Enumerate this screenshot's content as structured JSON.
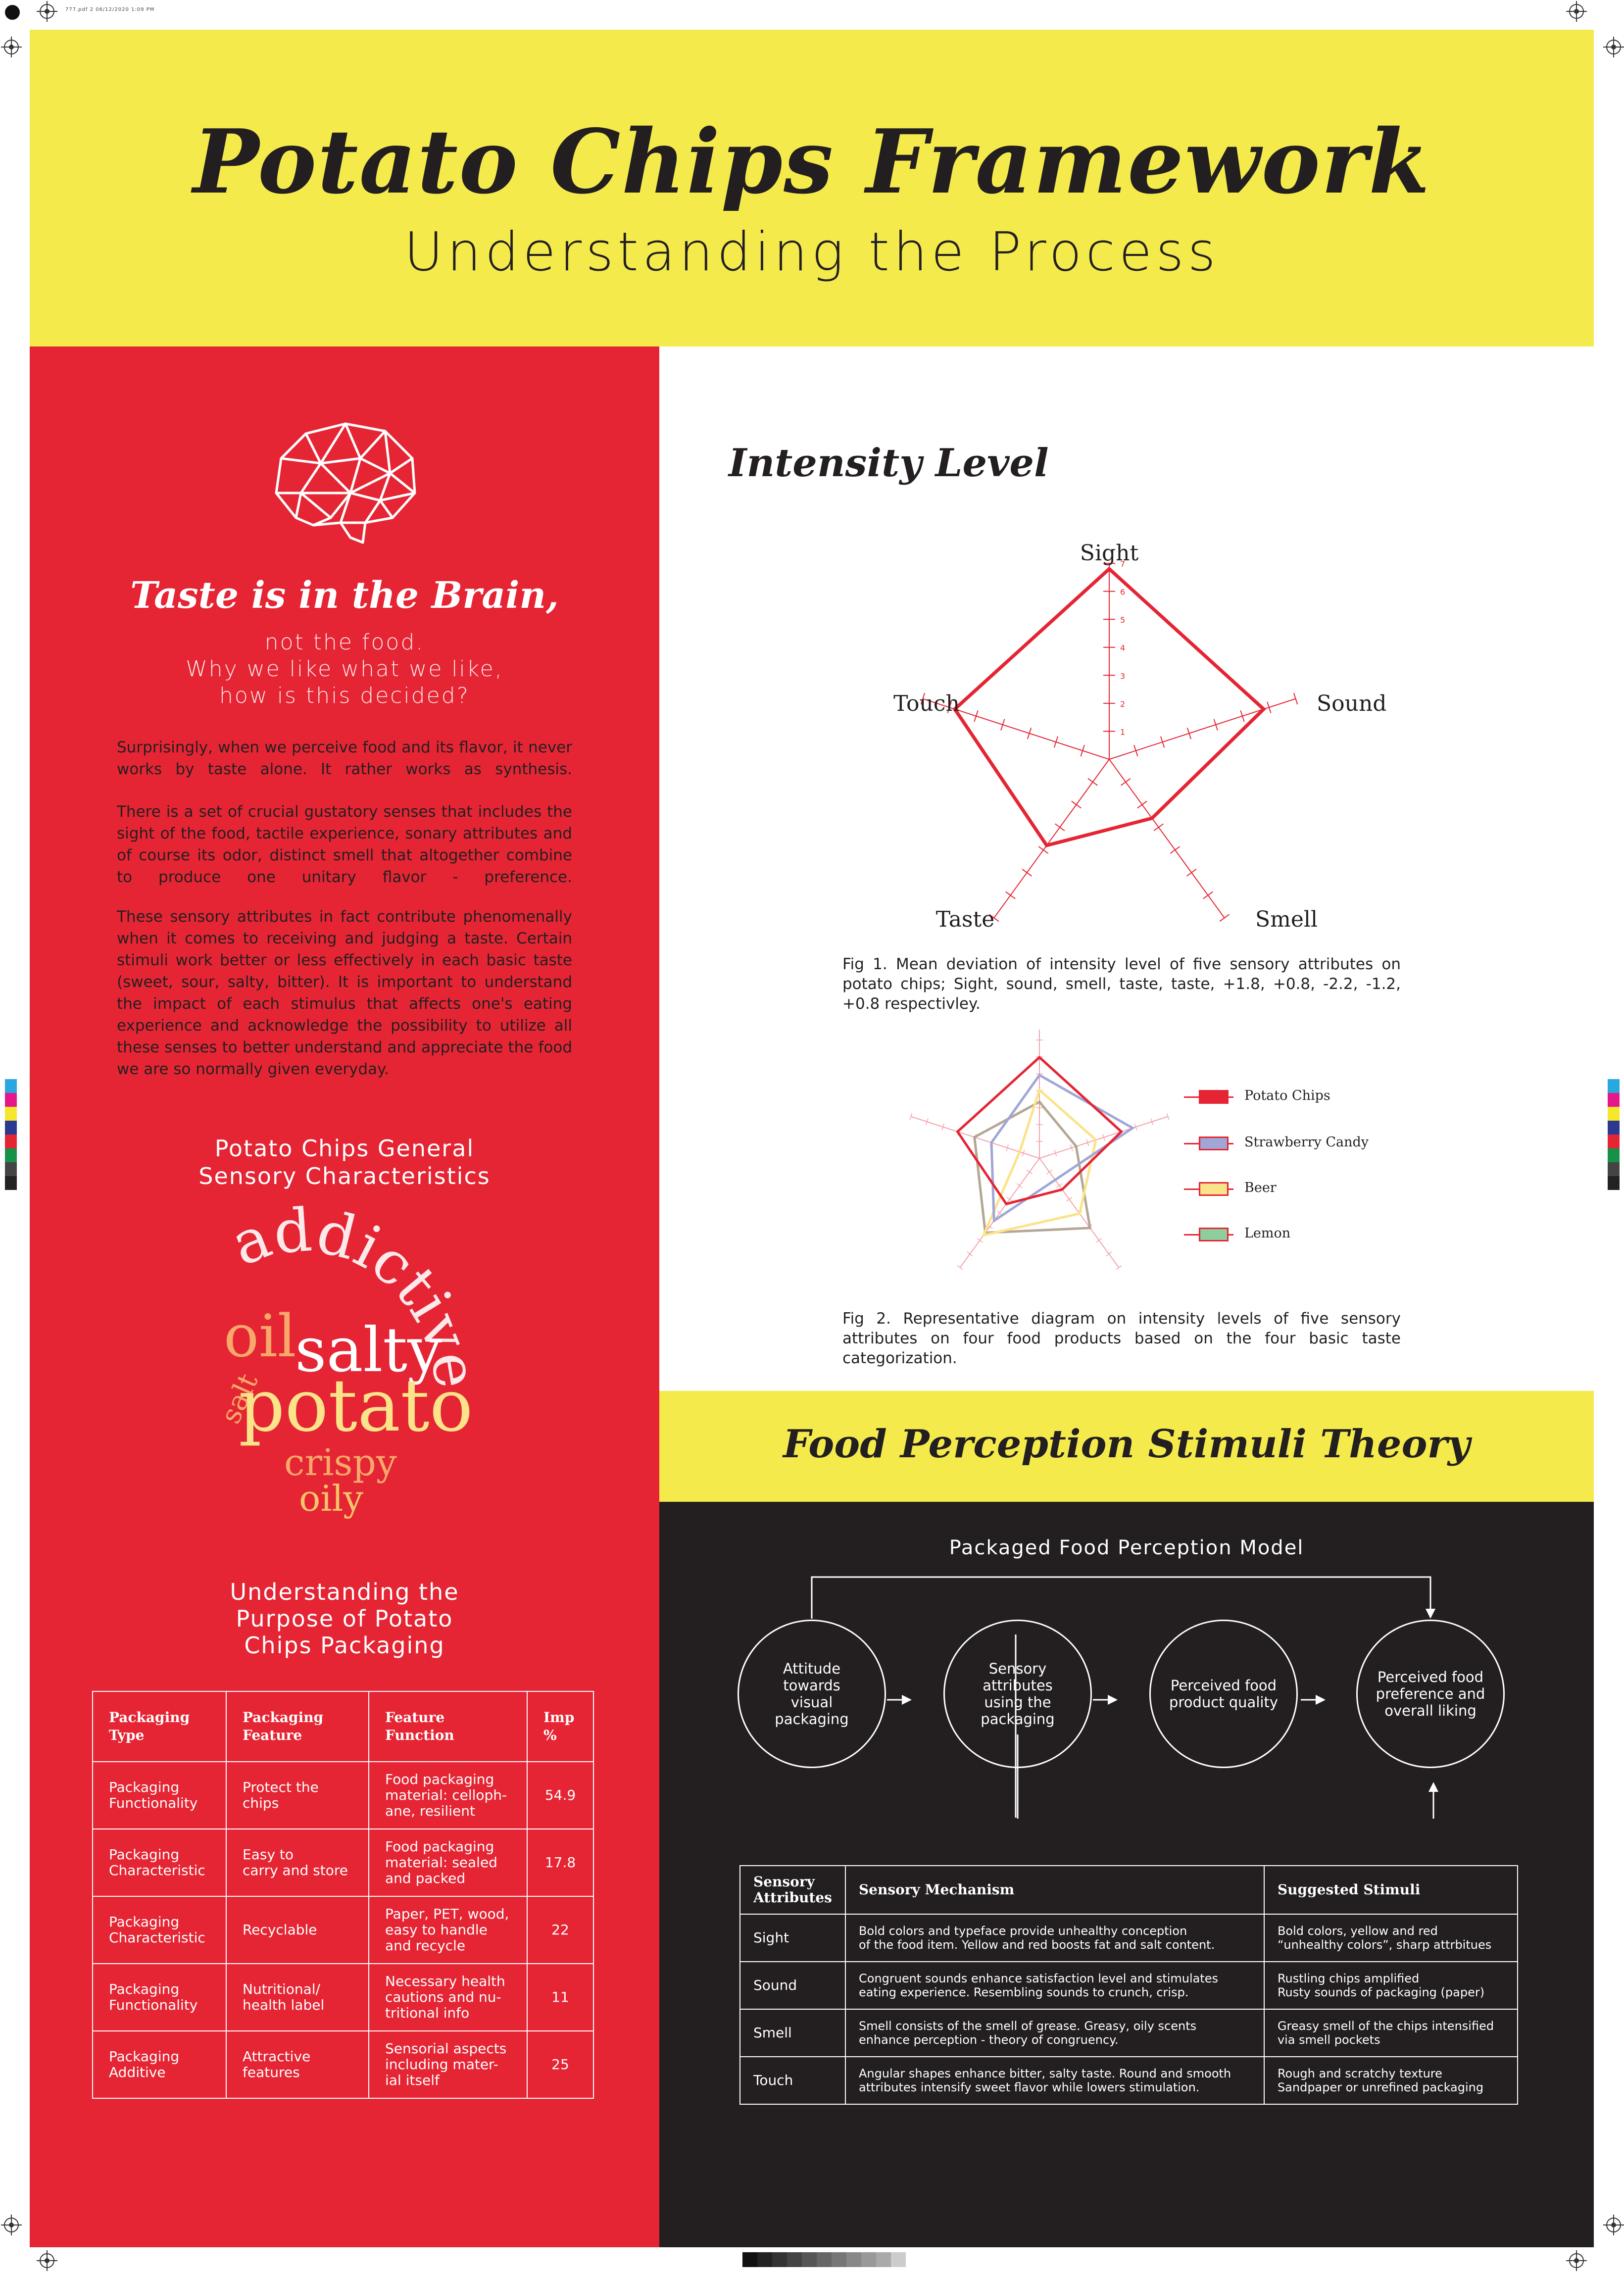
{
  "print_meta": "777.pdf   2   06/12/2020   1:09 PM",
  "header": {
    "title": "Potato Chips Framework",
    "subtitle": "Understanding the Process"
  },
  "left": {
    "taste_title": "Taste is in the Brain,",
    "taste_sub": [
      "not the food.",
      "Why we like what we like,",
      "how is this decided?"
    ],
    "paragraphs": [
      "Surprisingly, when we perceive food and its flavor, it never works by taste alone.  It rather works as synthesis.",
      "There is a set of crucial gustatory senses that includes the sight of the food, tactile experience, sonary attributes and of course its odor, distinct smell that altogether combine to produce one unitary flavor - preference.",
      "These sensory attributes in fact contribute phenomenally when it comes to receiving and judging a taste. Certain stimuli work better or less effectively in each basic taste (sweet, sour, salty, bitter). It is important to understand the impact of each stimulus that affects one's eating experience and acknowledge the possibility to utilize all these senses to better understand and appreciate the food we are so normally given everyday."
    ],
    "general_heading": [
      "Potato Chips General",
      "Sensory Characteristics"
    ],
    "word_cloud": [
      "addictive",
      "oil",
      "salty",
      "salt",
      "potato",
      "crispy",
      "oily"
    ],
    "packaging_heading": [
      "Understanding the",
      "Purpose of Potato",
      "Chips Packaging"
    ],
    "packaging_table": {
      "headers": [
        [
          "Packaging",
          "Type"
        ],
        [
          "Packaging",
          "Feature"
        ],
        [
          "Feature",
          "Function"
        ],
        [
          "Imp",
          "%"
        ]
      ],
      "rows": [
        [
          [
            "Packaging",
            "Functionality"
          ],
          [
            "Protect the",
            "chips"
          ],
          [
            "Food packaging",
            "material: celloph-",
            "ane, resilient"
          ],
          [
            "54.9"
          ]
        ],
        [
          [
            "Packaging",
            "Characteristic"
          ],
          [
            "Easy to",
            "carry and store"
          ],
          [
            "Food packaging",
            "material: sealed",
            "and packed"
          ],
          [
            "17.8"
          ]
        ],
        [
          [
            "Packaging",
            "Characteristic"
          ],
          [
            "Recyclable"
          ],
          [
            "Paper, PET, wood,",
            "easy to handle",
            "and recycle"
          ],
          [
            "22"
          ]
        ],
        [
          [
            "Packaging",
            "Functionality"
          ],
          [
            "Nutritional/",
            "health label"
          ],
          [
            "Necessary health",
            "cautions and nu-",
            "tritional info"
          ],
          [
            "11"
          ]
        ],
        [
          [
            "Packaging",
            "Additive"
          ],
          [
            "Attractive",
            "features"
          ],
          [
            "Sensorial aspects",
            "including mater-",
            "ial itself"
          ],
          [
            "25"
          ]
        ]
      ]
    }
  },
  "right": {
    "intensity_title": "Intensity Level",
    "fig1_caption": "Fig 1. Mean deviation of intensity level of five sensory attributes on potato chips; Sight, sound, smell, taste, taste, +1.8, +0.8, -2.2, -1.2, +0.8 respectivley.",
    "fig2_caption": "Fig 2. Representative diagram on intensity levels of five sensory attributes on four food products based on the four basic taste categorization.",
    "fpst_title": "Food Perception Stimuli Theory",
    "model_title": "Packaged Food Perception Model",
    "model_nodes": [
      [
        "Attitude towards",
        "visual packaging"
      ],
      [
        "Sensory attributes",
        "using the packaging"
      ],
      [
        "Perceived food",
        "product quality"
      ],
      [
        "Perceived food",
        "preference and",
        "overall liking"
      ]
    ],
    "stimuli_table": {
      "headers": [
        [
          "Sensory",
          "Attributes"
        ],
        [
          "Sensory Mechanism"
        ],
        [
          "Suggested Stimuli"
        ]
      ],
      "rows": [
        [
          [
            "Sight"
          ],
          [
            "Bold colors and typeface provide unhealthy conception",
            "of the food item. Yellow and red boosts fat and salt content."
          ],
          [
            "Bold colors, yellow and red",
            "“unhealthy colors”,  sharp attrbitues"
          ]
        ],
        [
          [
            "Sound"
          ],
          [
            "Congruent sounds enhance satisfaction level and stimulates",
            "eating experience. Resembling sounds to crunch, crisp."
          ],
          [
            "Rustling chips amplified",
            "Rusty sounds of packaging (paper)"
          ]
        ],
        [
          [
            "Smell"
          ],
          [
            "Smell consists of the smell of grease. Greasy, oily scents",
            "enhance perception - theory of congruency."
          ],
          [
            "Greasy smell of the chips intensified",
            "via smell pockets"
          ]
        ],
        [
          [
            "Touch"
          ],
          [
            "Angular shapes enhance bitter, salty taste. Round and smooth",
            "attributes intensify sweet flavor while lowers stimulation."
          ],
          [
            "Rough and scratchy texture",
            "Sandpaper or unrefined packaging"
          ]
        ]
      ]
    }
  },
  "chart_data": [
    {
      "type": "radar",
      "axes": [
        "Sight",
        "Sound",
        "Smell",
        "Taste",
        "Touch"
      ],
      "rmax": 7,
      "tick_labels": [
        "1",
        "2",
        "3",
        "4",
        "5",
        "6",
        "7"
      ],
      "series": [
        {
          "values": [
            6.8,
            5.8,
            2.6,
            3.8,
            5.8
          ],
          "color": "#e52534"
        }
      ]
    },
    {
      "type": "radar",
      "axes": [
        "Sight",
        "Sound",
        "Smell",
        "Taste",
        "Touch"
      ],
      "rmax": 7,
      "series": [
        {
          "name": "Potato Chips",
          "values": [
            6.8,
            5.8,
            2.6,
            3.8,
            5.8
          ],
          "color": "#e52534"
        },
        {
          "name": "Strawberry Candy",
          "values": [
            5.6,
            6.6,
            1.8,
            5.2,
            3.4
          ],
          "color": "#a0a6d6"
        },
        {
          "name": "Beer",
          "values": [
            4.6,
            4.0,
            4.6,
            6.4,
            1.4
          ],
          "color": "#fbe38a"
        },
        {
          "name": "Lemon",
          "values": [
            3.8,
            2.6,
            5.8,
            6.2,
            4.6
          ],
          "color": "#a89882"
        }
      ]
    }
  ],
  "colors": {
    "red": "#e52534",
    "yellow": "#f4ea4c",
    "dark": "#231f20",
    "cream": "#fbe38a",
    "peach": "#f7a86a"
  }
}
